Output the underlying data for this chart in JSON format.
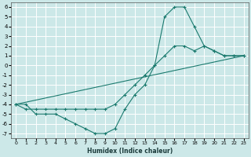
{
  "xlabel": "Humidex (Indice chaleur)",
  "bg_color": "#cce8e8",
  "grid_color": "#ffffff",
  "line_color": "#1a7a6e",
  "xlim": [
    -0.5,
    23.5
  ],
  "ylim": [
    -7.5,
    6.5
  ],
  "xticks": [
    0,
    1,
    2,
    3,
    4,
    5,
    6,
    7,
    8,
    9,
    10,
    11,
    12,
    13,
    14,
    15,
    16,
    17,
    18,
    19,
    20,
    21,
    22,
    23
  ],
  "yticks": [
    -7,
    -6,
    -5,
    -4,
    -3,
    -2,
    -1,
    0,
    1,
    2,
    3,
    4,
    5,
    6
  ],
  "series": [
    {
      "x": [
        0,
        1,
        2,
        3,
        4,
        5,
        6,
        7,
        8,
        9,
        10,
        11,
        12,
        13,
        14,
        15,
        16,
        17,
        18,
        19,
        20,
        21,
        22,
        23
      ],
      "y": [
        -4,
        -4,
        -5,
        -5,
        -5,
        -5.5,
        -6,
        -6.5,
        -7,
        -7,
        -6.5,
        -4.5,
        -3,
        -2,
        0,
        5,
        6,
        6,
        4,
        2,
        1.5,
        1,
        1,
        1
      ]
    },
    {
      "x": [
        0,
        1,
        2,
        3,
        4,
        5,
        6,
        7,
        8,
        9,
        10,
        11,
        12,
        13,
        14,
        15,
        16,
        17,
        18,
        19,
        20,
        21,
        22,
        23
      ],
      "y": [
        -4,
        -4.5,
        -4.5,
        -4.5,
        -4.5,
        -4.5,
        -4.5,
        -4.5,
        -4.5,
        -4.5,
        -4,
        -3,
        -2,
        -1,
        0,
        1,
        2,
        2,
        1.5,
        2,
        1.5,
        1,
        1,
        1
      ]
    },
    {
      "x": [
        0,
        23
      ],
      "y": [
        -4,
        1
      ]
    }
  ]
}
